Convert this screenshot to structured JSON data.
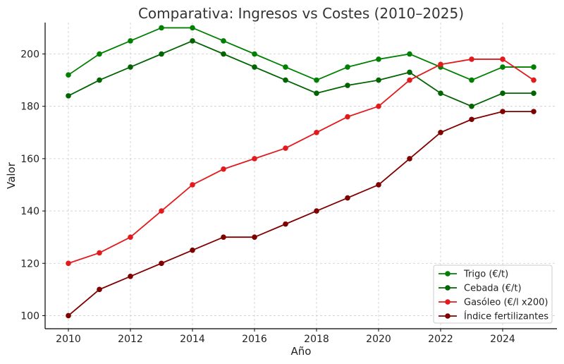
{
  "chart_data": {
    "type": "line",
    "title": "Comparativa: Ingresos vs Costes (2010–2025)",
    "xlabel": "Año",
    "ylabel": "Valor",
    "xlim": [
      2009.25,
      2025.75
    ],
    "ylim": [
      95,
      212
    ],
    "x_ticks": [
      2010,
      2012,
      2014,
      2016,
      2018,
      2020,
      2022,
      2024
    ],
    "y_ticks": [
      100,
      120,
      140,
      160,
      180,
      200
    ],
    "grid": true,
    "legend_position": "bottom-right",
    "x": [
      2010,
      2011,
      2012,
      2013,
      2014,
      2015,
      2016,
      2017,
      2018,
      2019,
      2020,
      2021,
      2022,
      2023,
      2024,
      2025
    ],
    "series": [
      {
        "name": "Trigo (€/t)",
        "color": "#008000",
        "values": [
          192,
          200,
          205,
          210,
          210,
          205,
          200,
          195,
          190,
          195,
          198,
          200,
          195,
          190,
          195,
          195
        ]
      },
      {
        "name": "Cebada (€/t)",
        "color": "#006400",
        "values": [
          184,
          190,
          195,
          200,
          205,
          200,
          195,
          190,
          185,
          188,
          190,
          193,
          185,
          180,
          185,
          185
        ]
      },
      {
        "name": "Gasóleo (€/l x200)",
        "color": "#e31a1c",
        "values": [
          120,
          124,
          130,
          140,
          150,
          156,
          160,
          164,
          170,
          176,
          180,
          190,
          196,
          198,
          198,
          190
        ]
      },
      {
        "name": "Índice fertilizantes",
        "color": "#800000",
        "values": [
          100,
          110,
          115,
          120,
          125,
          130,
          130,
          135,
          140,
          145,
          150,
          160,
          170,
          175,
          178,
          178
        ]
      }
    ]
  }
}
